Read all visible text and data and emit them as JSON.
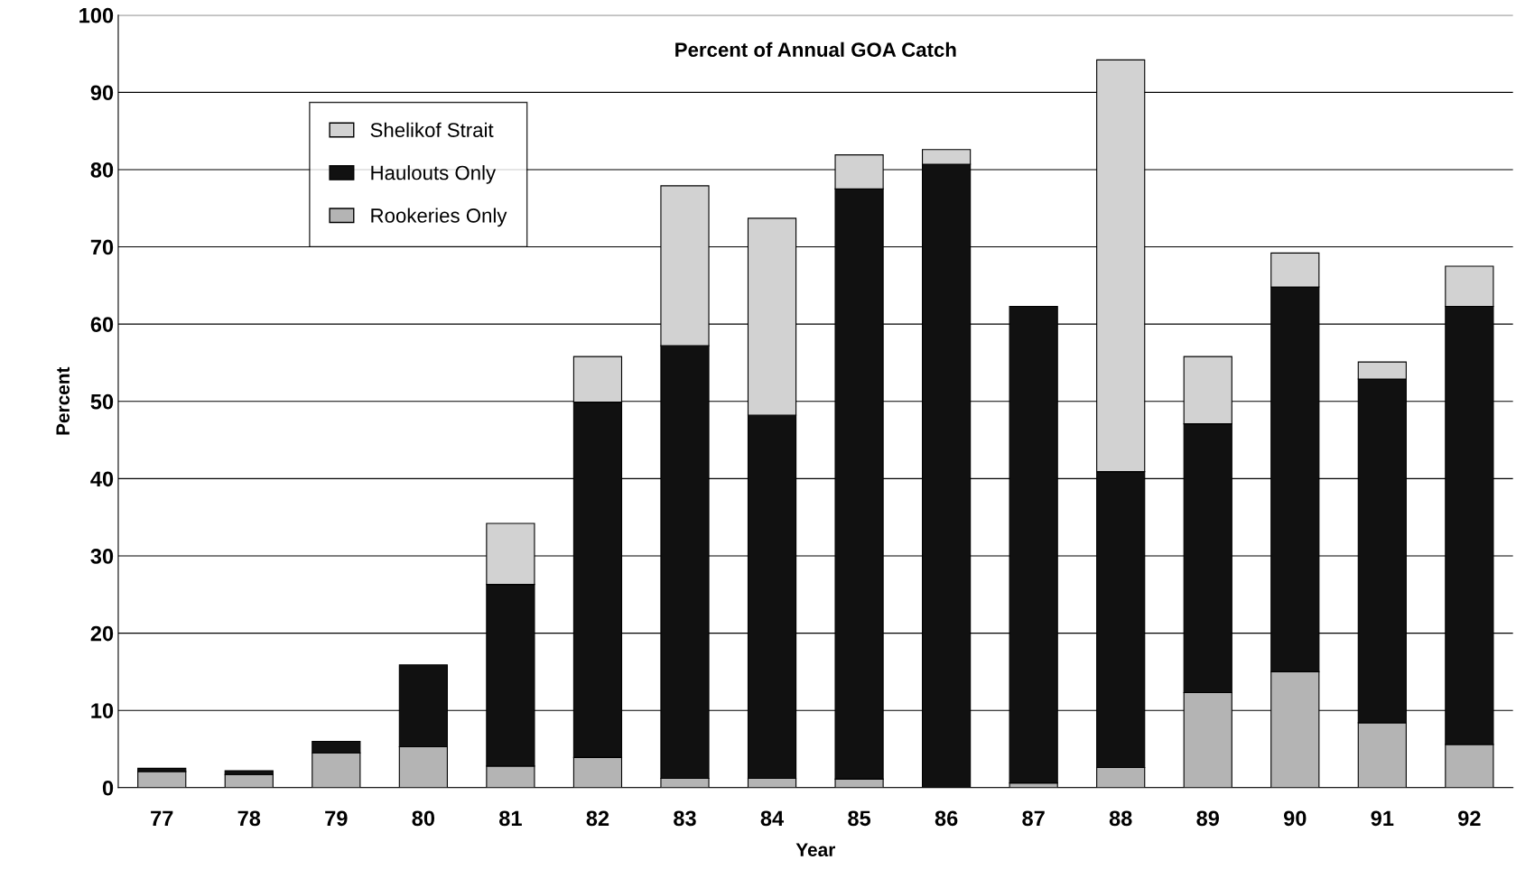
{
  "chart_data": {
    "type": "bar",
    "title": "Percent of Annual GOA Catch",
    "xlabel": "Year",
    "ylabel": "Percent",
    "categories": [
      "77",
      "78",
      "79",
      "80",
      "81",
      "82",
      "83",
      "84",
      "85",
      "86",
      "87",
      "88",
      "89",
      "90",
      "91",
      "92"
    ],
    "stacked": true,
    "ylim": [
      0,
      100
    ],
    "yticks": [
      0,
      10,
      20,
      30,
      40,
      50,
      60,
      70,
      80,
      90,
      100
    ],
    "grid": "y",
    "legend": "top left",
    "series": [
      {
        "name": "Rookeries Only",
        "color": "#b4b4b4",
        "values": [
          2.1,
          1.7,
          4.5,
          5.3,
          2.8,
          3.9,
          1.2,
          1.2,
          1.1,
          0,
          0.6,
          2.6,
          12.3,
          15,
          8.4,
          5.6
        ]
      },
      {
        "name": "Haulouts Only",
        "color": "#111111",
        "values": [
          0.4,
          0.5,
          1.5,
          10.6,
          23.5,
          46,
          56,
          47,
          76.4,
          80.7,
          61.7,
          38.3,
          34.8,
          49.8,
          44.5,
          56.7
        ]
      },
      {
        "name": "Shelikof Strait",
        "color": "#d2d2d2",
        "values": [
          0,
          0,
          0,
          0,
          7.9,
          5.9,
          20.7,
          25.5,
          4.4,
          1.9,
          0,
          53.3,
          8.7,
          4.4,
          2.2,
          5.2
        ]
      }
    ]
  }
}
